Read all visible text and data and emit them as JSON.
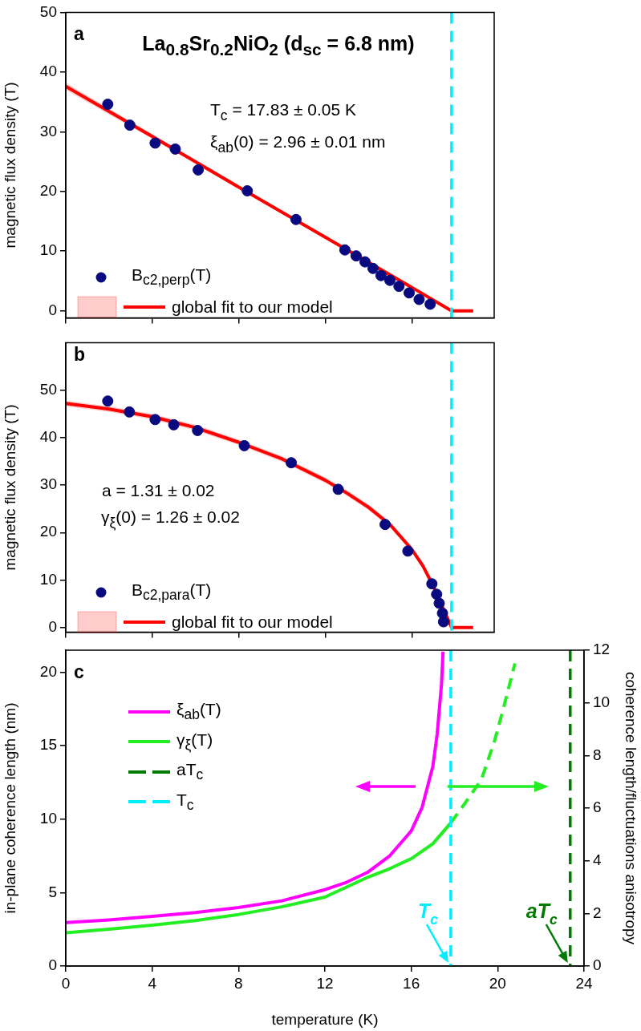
{
  "chart_data": [
    {
      "type": "scatter",
      "title": "La$_{0.8}$Sr$_{0.2}$NiO$_{2}$ (d$_{sc}$ = 6.8 nm)",
      "ylabel": "magnetic flux density (T)",
      "annotations": [
        "a",
        "T$_{c}$ = 17.83 ± 0.05 K",
        "ξ$_{ab}$(0) = 2.96 ±  0.01 nm"
      ],
      "series": [
        {
          "name": "B$_{c2,perp}$(T)",
          "color": "#0a0a80",
          "marker": "circle",
          "x": [
            1.94,
            2.96,
            4.13,
            5.06,
            6.12,
            8.39,
            10.64,
            12.9,
            13.42,
            13.83,
            14.2,
            14.57,
            14.98,
            15.4,
            15.87,
            16.33,
            16.84
          ],
          "values": [
            34.6,
            31.1,
            28.1,
            27.1,
            23.6,
            20.1,
            15.3,
            10.2,
            9.2,
            8.2,
            7.1,
            5.9,
            5.1,
            4.1,
            3.0,
            1.9,
            1.1
          ]
        },
        {
          "type": "line",
          "name": "global fit to our model",
          "color": "#ff0000",
          "x": [
            0,
            4,
            8,
            12,
            16,
            17.83,
            18.83
          ],
          "values": [
            37.6,
            29.2,
            20.7,
            12.3,
            3.9,
            0,
            0
          ],
          "lower": [
            37.0,
            28.8,
            20.4,
            12.1,
            3.8,
            0,
            0
          ],
          "upper": [
            38.2,
            29.6,
            21.0,
            12.5,
            4.0,
            0,
            0
          ]
        }
      ],
      "xlim": [
        0,
        19.8
      ],
      "xticks": [
        0,
        4,
        8,
        12,
        16
      ],
      "ylim": [
        -1.2,
        50
      ],
      "yticks": [
        0,
        10,
        20,
        30,
        40,
        50
      ],
      "tick_labels": "y",
      "ref_lines": [
        {
          "axis": "x",
          "value": 17.83,
          "color": "#00eeff",
          "line_style": "dashed"
        }
      ],
      "legend": "bottom left",
      "grid": false
    },
    {
      "type": "scatter",
      "ylabel": "magnetic flux density (T)",
      "annotations": [
        "b",
        "a = 1.31 ± 0.02",
        "γ$_{ξ}$(0) = 1.26 ± 0.02"
      ],
      "series": [
        {
          "name": "B$_{c2,para}$(T)",
          "color": "#0a0a80",
          "marker": "circle",
          "x": [
            1.94,
            2.94,
            4.13,
            4.99,
            6.09,
            8.25,
            10.42,
            12.59,
            14.76,
            15.81,
            16.92,
            17.14,
            17.26,
            17.41,
            17.46
          ],
          "values": [
            47.7,
            45.4,
            43.8,
            42.7,
            41.5,
            38.3,
            34.7,
            29.1,
            21.7,
            16.1,
            9.2,
            7.0,
            5.1,
            3.0,
            1.2
          ]
        },
        {
          "type": "line",
          "name": "global fit to our model",
          "color": "#ff0000",
          "x": [
            0,
            2,
            4,
            6,
            8,
            10,
            12,
            13,
            14,
            15,
            16,
            16.5,
            17,
            17.5,
            17.83,
            18.83
          ],
          "values": [
            47.2,
            46.0,
            44.4,
            42.1,
            39.0,
            35.5,
            31.0,
            28.3,
            25.3,
            21.6,
            16.4,
            13.0,
            8.6,
            3.4,
            0,
            0
          ],
          "lower": [
            46.6,
            45.4,
            43.8,
            41.5,
            38.4,
            34.9,
            30.4,
            27.7,
            24.7,
            21.0,
            15.8,
            12.4,
            8.0,
            3.0,
            0,
            0
          ],
          "upper": [
            47.8,
            46.6,
            45.0,
            42.7,
            39.6,
            36.1,
            31.6,
            28.9,
            25.9,
            22.2,
            17.0,
            13.6,
            9.2,
            3.8,
            0,
            0
          ]
        }
      ],
      "xlim": [
        0,
        19.8
      ],
      "xticks": [
        0,
        4,
        8,
        12,
        16
      ],
      "ylim": [
        -1,
        60
      ],
      "yticks": [
        0,
        10,
        20,
        30,
        40,
        50
      ],
      "tick_labels": "y",
      "ref_lines": [
        {
          "axis": "x",
          "value": 17.83,
          "color": "#00eeff",
          "line_style": "dashed"
        }
      ],
      "legend": "bottom left",
      "grid": false
    },
    {
      "type": "line",
      "xlabel": "temperature (K)",
      "ylabel": "in-plane coherence length (nm)",
      "y2label": "coherence length/fluctuations anisotropy",
      "annotations": [
        "c"
      ],
      "series": [
        {
          "name": "ξ$_{ab}$(T)",
          "color": "#ff00ff",
          "x": [
            0,
            2,
            4,
            6,
            8,
            10,
            12,
            13,
            14,
            15,
            16,
            16.5,
            17,
            17.2,
            17.4,
            17.47
          ],
          "values": [
            2.96,
            3.14,
            3.38,
            3.64,
            3.98,
            4.44,
            5.2,
            5.7,
            6.4,
            7.5,
            9.2,
            10.8,
            13.6,
            15.8,
            19.2,
            21.4
          ]
        },
        {
          "name": "γ$_{ξ}$(T)",
          "color": "#22ee22",
          "axis": "y2",
          "x": [
            0,
            2,
            4,
            6,
            8,
            10,
            12,
            14,
            15,
            16,
            17,
            17.83
          ],
          "values": [
            1.26,
            1.4,
            1.55,
            1.73,
            1.96,
            2.25,
            2.62,
            3.38,
            3.7,
            4.08,
            4.65,
            5.44
          ]
        },
        {
          "color": "#22ee22",
          "axis": "y2",
          "line_style": "dashed",
          "x": [
            17.83,
            18.5,
            19.25,
            19.85,
            20.3,
            20.8
          ],
          "values": [
            5.44,
            6.2,
            7.09,
            8.54,
            9.9,
            11.5
          ]
        }
      ],
      "xlim": [
        0,
        24
      ],
      "xticks": [
        0,
        4,
        8,
        12,
        16,
        20,
        24
      ],
      "ylim": [
        0,
        21.5
      ],
      "yticks": [
        0,
        5,
        10,
        15,
        20
      ],
      "y2lim": [
        0,
        12
      ],
      "y2ticks": [
        0,
        2,
        4,
        6,
        8,
        10,
        12
      ],
      "ref_lines": [
        {
          "axis": "x",
          "value": 23.36,
          "label": "aT$_{c}$",
          "color": "#007a00",
          "line_style": "dashed"
        },
        {
          "axis": "x",
          "value": 17.83,
          "label": "T$_{c}$",
          "color": "#00eeff",
          "line_style": "dashed"
        }
      ],
      "legend": "top left",
      "marker": "none",
      "grid": false
    }
  ]
}
